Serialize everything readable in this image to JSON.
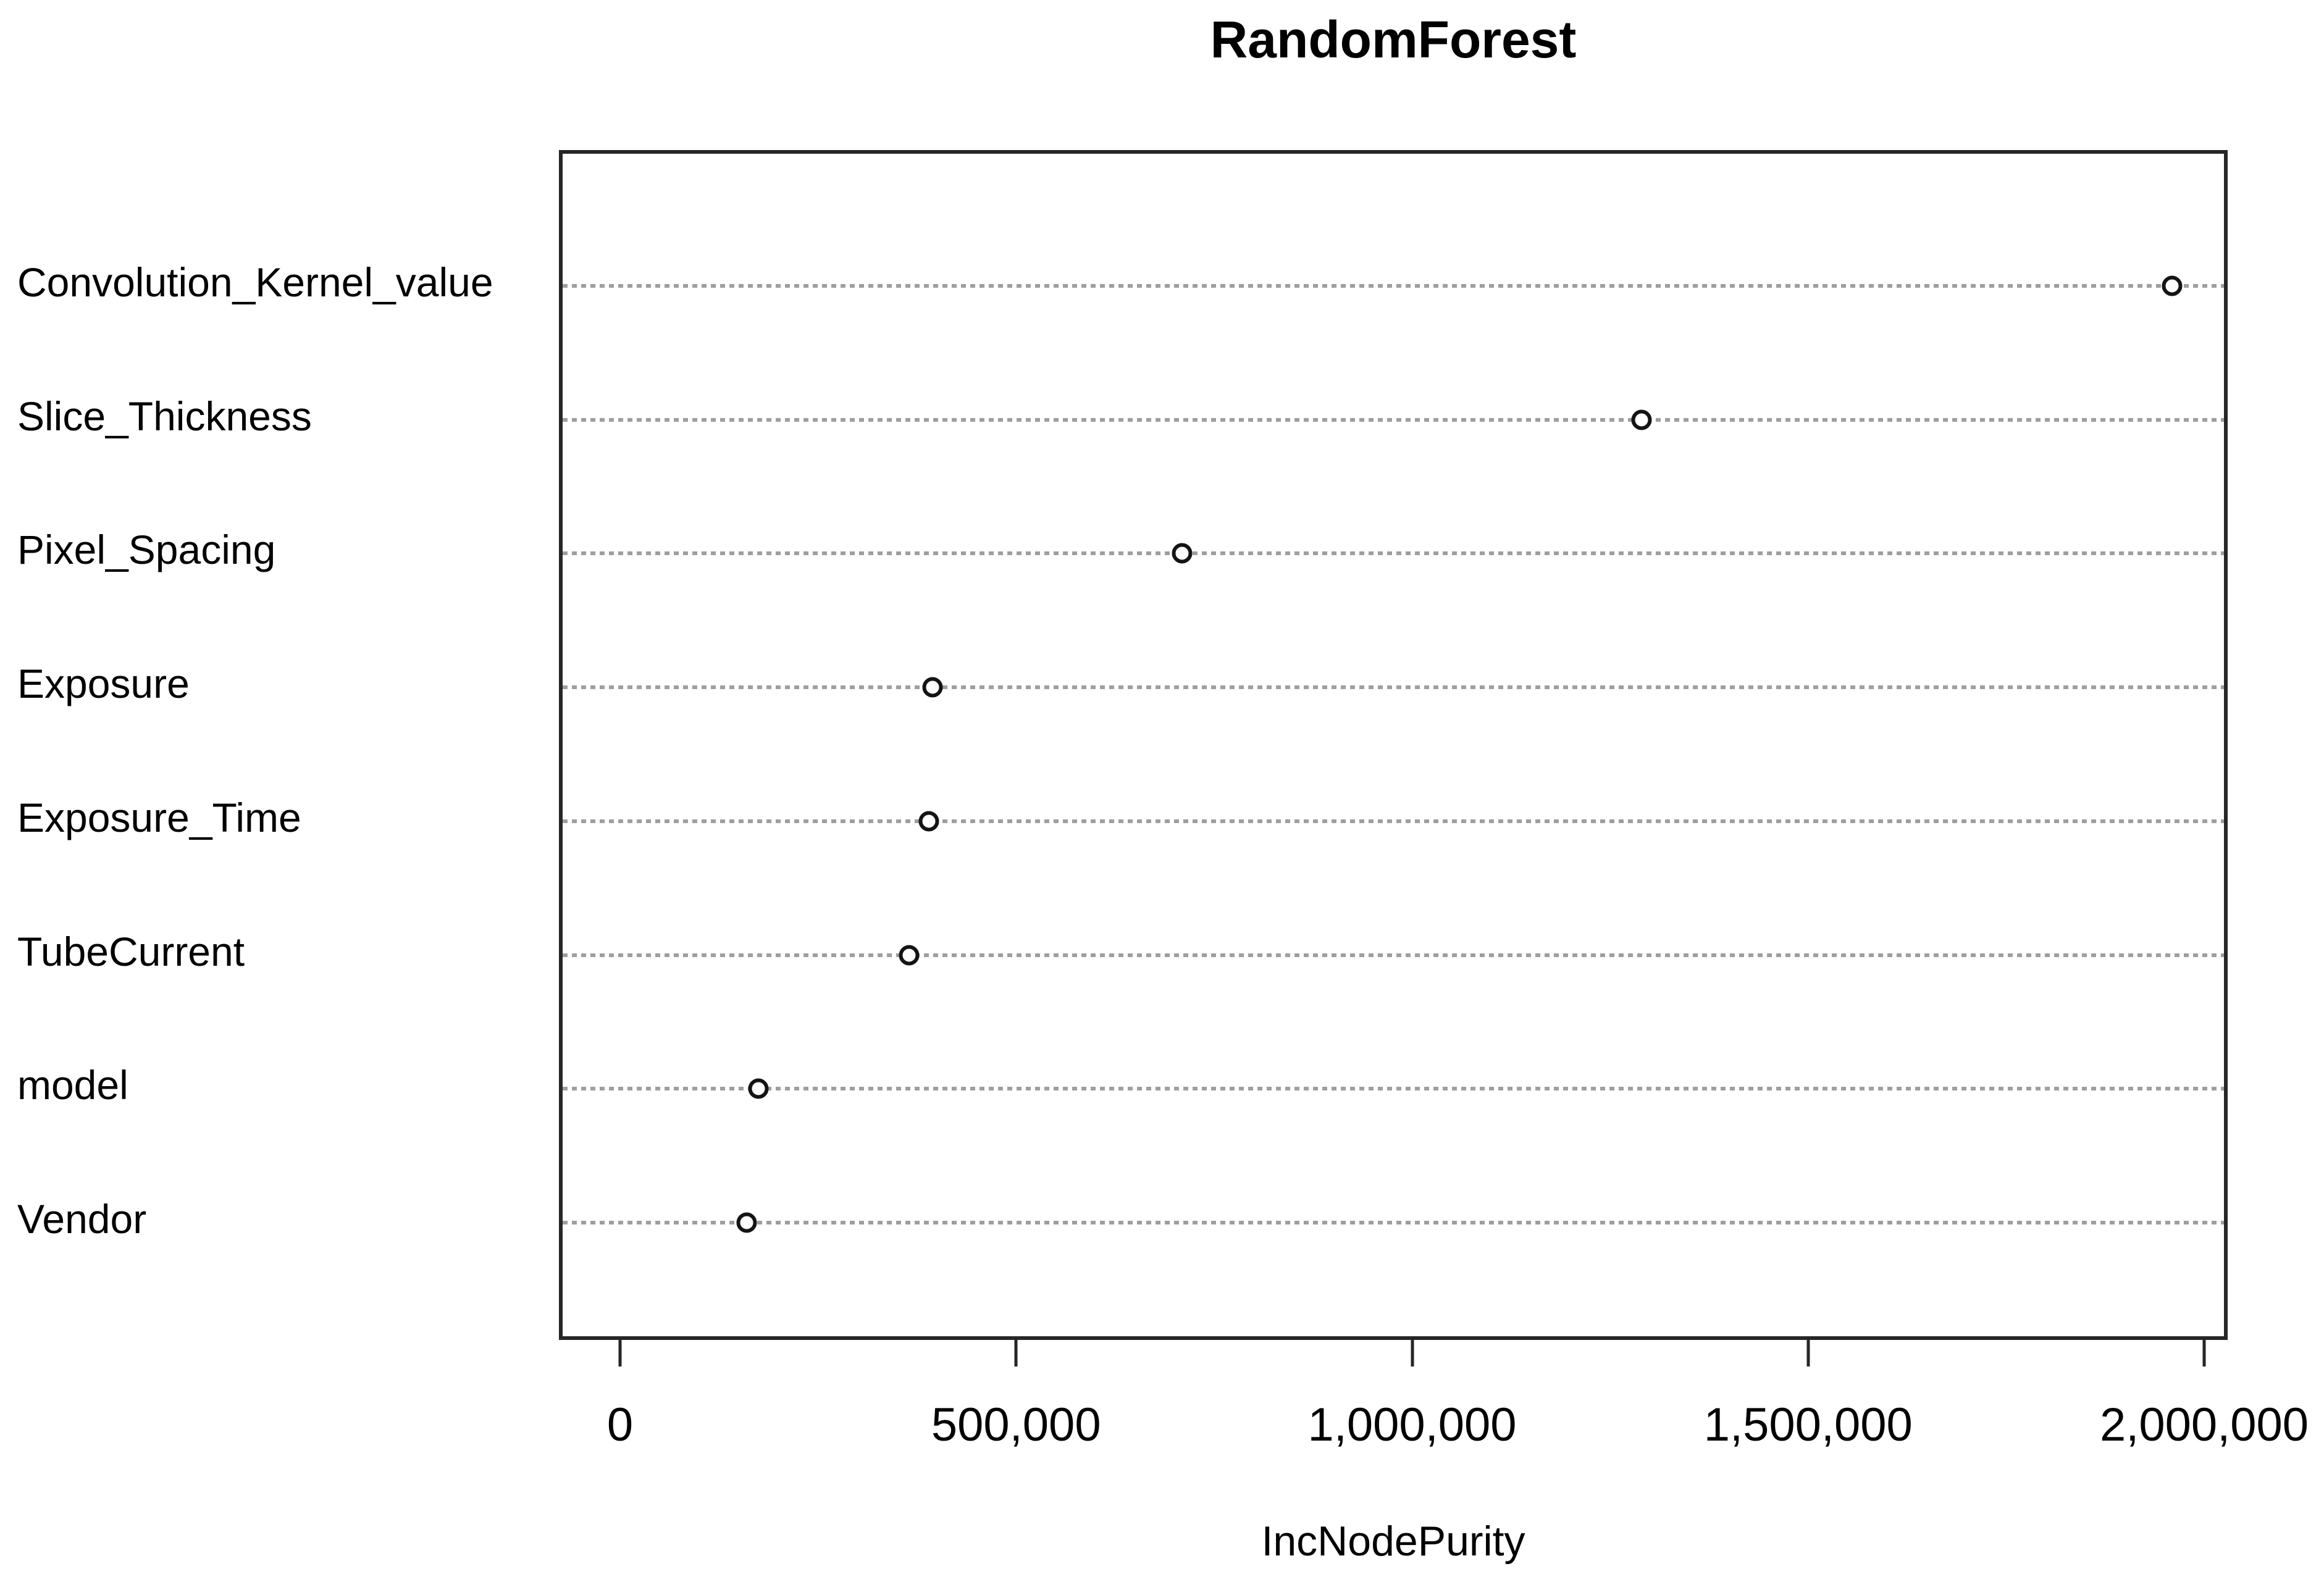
{
  "title": "RandomForest",
  "x_axis_label": "IncNodePurity",
  "colors": {
    "background": "#ffffff",
    "plot_border": "#262626",
    "grid_dots": "#9e9e9e",
    "marker_stroke": "#141414",
    "marker_fill": "#ffffff",
    "text": "#000000"
  },
  "chart_data": {
    "type": "scatter",
    "subtype": "dot-plot (R varImpPlot / dotchart)",
    "title": "RandomForest",
    "xlabel": "IncNodePurity",
    "ylabel": "",
    "categories": [
      "Convolution_Kernel_value",
      "Slice_Thickness",
      "Pixel_Spacing",
      "Exposure",
      "Exposure_Time",
      "TubeCurrent",
      "model",
      "Vendor"
    ],
    "values": [
      1955000,
      1285000,
      705000,
      390000,
      385000,
      360000,
      170000,
      155000
    ],
    "xlim": [
      0,
      2000000
    ],
    "xticks": [
      0,
      500000,
      1000000,
      1500000,
      2000000
    ],
    "xtick_labels": [
      "0",
      "500,000",
      "1,000,000",
      "1,500,000",
      "2,000,000"
    ],
    "grid": "horizontal dotted gray lines, one per category",
    "legend": "none",
    "marker": "open-circle"
  }
}
